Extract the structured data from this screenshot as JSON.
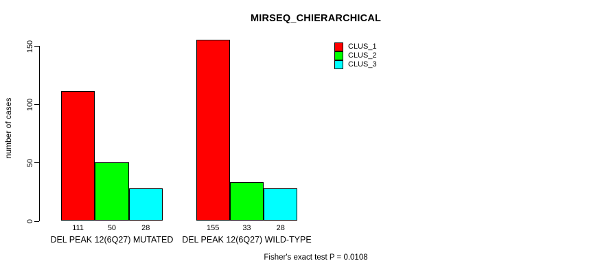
{
  "chart_data": {
    "type": "bar",
    "title": "MIRSEQ_CHIERARCHICAL",
    "ylabel": "number of cases",
    "xlabel": "",
    "ylim": [
      0,
      155
    ],
    "yticks": [
      0,
      50,
      100,
      150
    ],
    "grid": false,
    "legend_position": "top-right",
    "categories": [
      "DEL PEAK 12(6Q27) MUTATED",
      "DEL PEAK 12(6Q27) WILD-TYPE"
    ],
    "series": [
      {
        "name": "CLUS_1",
        "color": "#FF0000",
        "values": [
          111,
          155
        ]
      },
      {
        "name": "CLUS_2",
        "color": "#00FF00",
        "values": [
          50,
          33
        ]
      },
      {
        "name": "CLUS_3",
        "color": "#00FFFF",
        "values": [
          28,
          28
        ]
      }
    ],
    "bar_value_labels": [
      [
        111,
        50,
        28
      ],
      [
        155,
        33,
        28
      ]
    ],
    "annotation": "Fisher's exact test P = 0.0108",
    "axis_color": "#000000",
    "bar_border_color": "#000000",
    "background_color": "#FFFFFF"
  }
}
